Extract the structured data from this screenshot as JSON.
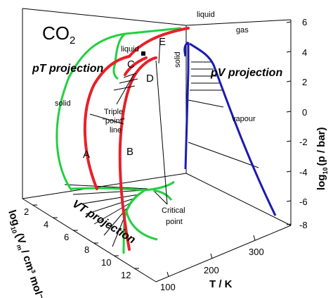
{
  "title": {
    "main": "CO",
    "subscript": "2"
  },
  "projections": {
    "pT": "pT projection",
    "pV": "pV projection",
    "VT": "VT projection"
  },
  "region_labels": {
    "liquid_pT": "liquid",
    "solid_pT": "solid",
    "liquid_pV": "liquid",
    "gas_pV": "gas",
    "solid_pV": "solid",
    "vapour_pV": "vapour"
  },
  "point_labels": [
    "A",
    "B",
    "C",
    "D",
    "E"
  ],
  "callouts": {
    "triple": [
      "Triple",
      "\"point\"",
      "line"
    ],
    "critical": [
      "Critical",
      "point"
    ]
  },
  "axes": {
    "p_label": {
      "prefix": "log",
      "sub": "10",
      "rest": "(p / bar)"
    },
    "T_label": "T / K",
    "V_label": {
      "prefix": "log",
      "sub": "10",
      "mid": "(V",
      "sub2": "m",
      "rest": "/ cm³ mol⁻¹)"
    },
    "p_ticks": [
      "6",
      "4",
      "2",
      "0",
      "-2",
      "-4",
      "-6",
      "-8"
    ],
    "T_ticks": [
      "100",
      "200",
      "300"
    ],
    "V_ticks": [
      "2",
      "4",
      "6",
      "8",
      "10",
      "12"
    ]
  },
  "colors": {
    "pT_phase_lines": "#e8202a",
    "VT_boundary": "#22d040",
    "pV_boundary": "#1a1ab4",
    "frame": "#000000"
  }
}
